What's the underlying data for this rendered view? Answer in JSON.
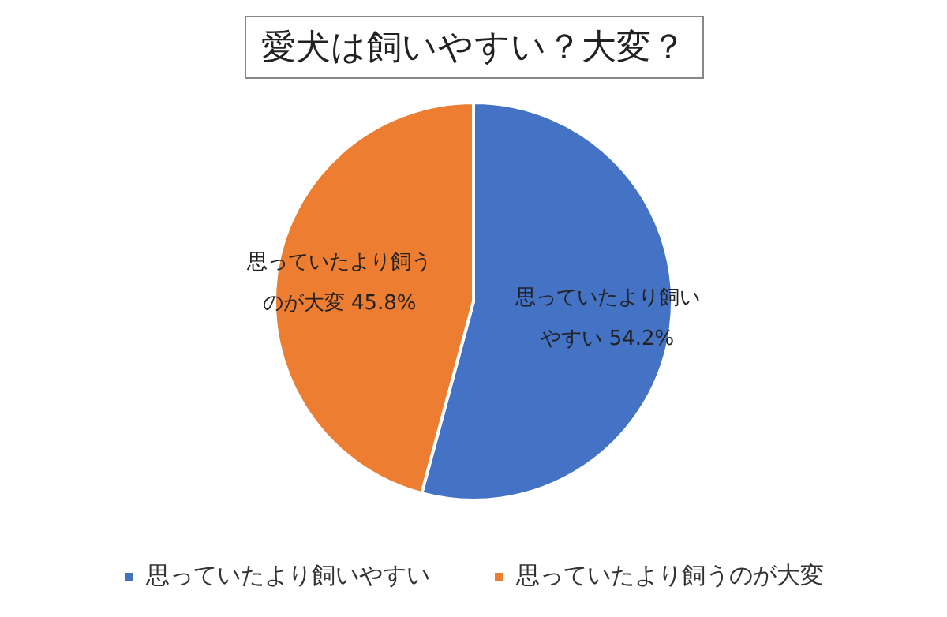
{
  "chart_data": {
    "type": "pie",
    "title": "愛犬は飼いやすい？大変？",
    "categories": [
      "思っていたより飼いやすい",
      "思っていたより飼うのが大変"
    ],
    "values": [
      54.2,
      45.8
    ],
    "colors": [
      "#4472c4",
      "#ed7d31"
    ],
    "value_labels": [
      "54.2%",
      "45.8%"
    ],
    "legend": "bottom"
  }
}
